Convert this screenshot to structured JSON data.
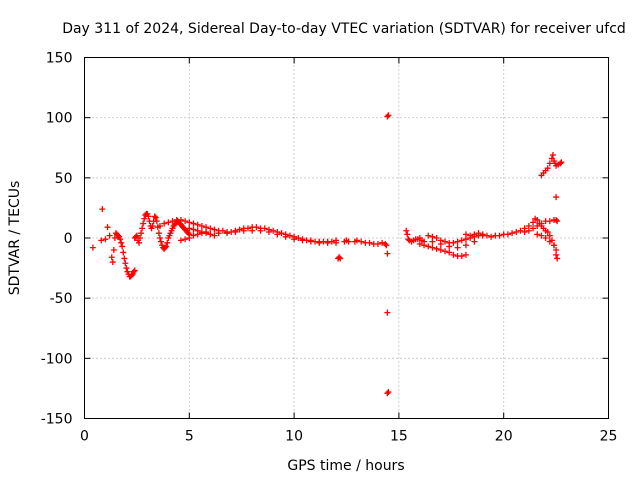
{
  "chart_data": {
    "type": "scatter",
    "title": "Day 311 of 2024, Sidereal Day-to-day VTEC variation (SDTVAR) for receiver ufcd",
    "xlabel": "GPS time / hours",
    "ylabel": "SDTVAR / TECUs",
    "xlim": [
      0,
      25
    ],
    "ylim": [
      -150,
      150
    ],
    "xticks": [
      0,
      5,
      10,
      15,
      20,
      25
    ],
    "yticks": [
      -150,
      -100,
      -50,
      0,
      50,
      100,
      150
    ],
    "grid": true,
    "marker": "+",
    "color": "#ff0000",
    "series": [
      {
        "name": "SDTVAR",
        "points": [
          [
            0.4,
            -8
          ],
          [
            0.85,
            24
          ],
          [
            0.8,
            -2
          ],
          [
            1.0,
            -1
          ],
          [
            1.1,
            9
          ],
          [
            1.2,
            2
          ],
          [
            1.3,
            -16
          ],
          [
            1.35,
            -20
          ],
          [
            1.4,
            -10
          ],
          [
            1.45,
            0
          ],
          [
            1.5,
            4
          ],
          [
            1.55,
            3
          ],
          [
            1.6,
            2
          ],
          [
            1.65,
            1
          ],
          [
            1.7,
            -1
          ],
          [
            1.75,
            -4
          ],
          [
            1.8,
            -7
          ],
          [
            1.85,
            -12
          ],
          [
            1.9,
            -17
          ],
          [
            1.95,
            -21
          ],
          [
            2.0,
            -25
          ],
          [
            2.05,
            -28
          ],
          [
            2.1,
            -30
          ],
          [
            2.15,
            -32
          ],
          [
            2.2,
            -32
          ],
          [
            2.25,
            -31
          ],
          [
            2.3,
            -30
          ],
          [
            2.35,
            -28
          ],
          [
            2.4,
            -27
          ],
          [
            2.4,
            0
          ],
          [
            2.45,
            1
          ],
          [
            2.5,
            2
          ],
          [
            2.55,
            -2
          ],
          [
            2.6,
            -4
          ],
          [
            2.65,
            0
          ],
          [
            2.7,
            4
          ],
          [
            2.75,
            8
          ],
          [
            2.8,
            12
          ],
          [
            2.85,
            16
          ],
          [
            2.9,
            19
          ],
          [
            2.95,
            20
          ],
          [
            3.0,
            20
          ],
          [
            3.05,
            18
          ],
          [
            3.1,
            14
          ],
          [
            3.15,
            10
          ],
          [
            3.2,
            8
          ],
          [
            3.25,
            10
          ],
          [
            3.3,
            14
          ],
          [
            3.35,
            18
          ],
          [
            3.4,
            17
          ],
          [
            3.45,
            14
          ],
          [
            3.5,
            9
          ],
          [
            3.55,
            4
          ],
          [
            3.6,
            0
          ],
          [
            3.65,
            -3
          ],
          [
            3.7,
            -6
          ],
          [
            3.75,
            -8
          ],
          [
            3.8,
            -9
          ],
          [
            3.85,
            -8
          ],
          [
            3.9,
            -7
          ],
          [
            3.95,
            -4
          ],
          [
            4.0,
            0
          ],
          [
            4.05,
            2
          ],
          [
            4.1,
            4
          ],
          [
            4.15,
            6
          ],
          [
            4.2,
            8
          ],
          [
            4.25,
            10
          ],
          [
            4.3,
            11
          ],
          [
            4.35,
            12
          ],
          [
            4.4,
            13
          ],
          [
            4.45,
            14
          ],
          [
            4.5,
            13
          ],
          [
            4.55,
            12
          ],
          [
            4.6,
            11
          ],
          [
            4.65,
            10
          ],
          [
            4.7,
            9
          ],
          [
            4.75,
            8
          ],
          [
            4.8,
            7
          ],
          [
            4.85,
            6
          ],
          [
            4.9,
            5
          ],
          [
            4.95,
            4
          ],
          [
            5.0,
            3
          ],
          [
            3.6,
            10
          ],
          [
            3.8,
            12
          ],
          [
            4.0,
            13
          ],
          [
            4.2,
            14
          ],
          [
            4.4,
            15
          ],
          [
            4.6,
            15
          ],
          [
            4.8,
            14
          ],
          [
            5.0,
            13
          ],
          [
            5.2,
            12
          ],
          [
            5.4,
            11
          ],
          [
            5.6,
            10
          ],
          [
            5.8,
            9
          ],
          [
            4.6,
            -2
          ],
          [
            4.8,
            -1
          ],
          [
            5.0,
            0
          ],
          [
            5.2,
            2
          ],
          [
            5.4,
            3
          ],
          [
            5.6,
            4
          ],
          [
            5.8,
            5
          ],
          [
            5.0,
            8
          ],
          [
            5.2,
            7
          ],
          [
            5.4,
            6
          ],
          [
            5.6,
            5
          ],
          [
            5.8,
            4
          ],
          [
            6.0,
            3
          ],
          [
            6.2,
            2
          ],
          [
            6.0,
            8
          ],
          [
            6.2,
            7
          ],
          [
            6.4,
            6
          ],
          [
            6.6,
            6
          ],
          [
            6.8,
            5
          ],
          [
            7.0,
            5
          ],
          [
            7.2,
            6
          ],
          [
            7.4,
            7
          ],
          [
            7.6,
            8
          ],
          [
            7.8,
            8
          ],
          [
            8.0,
            9
          ],
          [
            8.2,
            9
          ],
          [
            8.4,
            8
          ],
          [
            8.6,
            8
          ],
          [
            8.8,
            7
          ],
          [
            9.0,
            6
          ],
          [
            9.2,
            5
          ],
          [
            9.4,
            4
          ],
          [
            9.6,
            3
          ],
          [
            9.8,
            2
          ],
          [
            10.0,
            1
          ],
          [
            10.2,
            0
          ],
          [
            10.4,
            -1
          ],
          [
            10.6,
            -2
          ],
          [
            10.8,
            -2
          ],
          [
            11.0,
            -3
          ],
          [
            11.2,
            -3
          ],
          [
            11.4,
            -3
          ],
          [
            11.6,
            -3
          ],
          [
            11.8,
            -3
          ],
          [
            12.0,
            -2
          ],
          [
            6.0,
            3
          ],
          [
            6.4,
            4
          ],
          [
            6.8,
            4
          ],
          [
            7.2,
            5
          ],
          [
            7.6,
            6
          ],
          [
            8.0,
            6
          ],
          [
            8.4,
            6
          ],
          [
            8.8,
            5
          ],
          [
            9.2,
            3
          ],
          [
            9.6,
            1
          ],
          [
            10.0,
            -1
          ],
          [
            10.4,
            -2
          ],
          [
            10.8,
            -3
          ],
          [
            11.2,
            -4
          ],
          [
            11.6,
            -4
          ],
          [
            12.0,
            -4
          ],
          [
            12.1,
            -17
          ],
          [
            12.15,
            -16
          ],
          [
            12.2,
            -17
          ],
          [
            12.4,
            -3
          ],
          [
            12.5,
            -2
          ],
          [
            12.6,
            -3
          ],
          [
            12.9,
            -3
          ],
          [
            13.0,
            -2
          ],
          [
            13.2,
            -3
          ],
          [
            13.4,
            -4
          ],
          [
            13.6,
            -4
          ],
          [
            13.8,
            -5
          ],
          [
            14.0,
            -5
          ],
          [
            14.2,
            -4
          ],
          [
            14.35,
            -5
          ],
          [
            14.4,
            -6
          ],
          [
            14.45,
            101
          ],
          [
            14.5,
            102
          ],
          [
            14.45,
            -13
          ],
          [
            14.45,
            -62
          ],
          [
            14.45,
            -129
          ],
          [
            14.5,
            -128
          ],
          [
            15.35,
            6
          ],
          [
            15.4,
            3
          ],
          [
            15.45,
            -1
          ],
          [
            15.5,
            -2
          ],
          [
            15.6,
            -3
          ],
          [
            15.7,
            -2
          ],
          [
            15.8,
            -1
          ],
          [
            15.9,
            -1
          ],
          [
            16.0,
            0
          ],
          [
            16.1,
            -2
          ],
          [
            16.2,
            -3
          ],
          [
            16.0,
            -5
          ],
          [
            16.2,
            -6
          ],
          [
            16.4,
            -7
          ],
          [
            16.6,
            -8
          ],
          [
            16.8,
            -9
          ],
          [
            17.0,
            -10
          ],
          [
            17.2,
            -11
          ],
          [
            17.4,
            -12
          ],
          [
            17.6,
            -14
          ],
          [
            17.8,
            -15
          ],
          [
            18.0,
            -15
          ],
          [
            18.2,
            -14
          ],
          [
            16.4,
            2
          ],
          [
            16.6,
            1
          ],
          [
            16.8,
            0
          ],
          [
            17.0,
            -2
          ],
          [
            17.2,
            -3
          ],
          [
            17.4,
            -4
          ],
          [
            17.6,
            -4
          ],
          [
            17.8,
            -3
          ],
          [
            18.0,
            -2
          ],
          [
            18.2,
            -1
          ],
          [
            18.4,
            0
          ],
          [
            18.6,
            1
          ],
          [
            18.8,
            2
          ],
          [
            19.0,
            2
          ],
          [
            16.6,
            -3
          ],
          [
            17.0,
            -5
          ],
          [
            17.4,
            -7
          ],
          [
            17.8,
            -8
          ],
          [
            18.2,
            -6
          ],
          [
            18.6,
            -3
          ],
          [
            18.2,
            3
          ],
          [
            18.4,
            2
          ],
          [
            18.6,
            3
          ],
          [
            18.8,
            4
          ],
          [
            19.0,
            3
          ],
          [
            19.2,
            2
          ],
          [
            19.4,
            1
          ],
          [
            19.6,
            2
          ],
          [
            19.8,
            2
          ],
          [
            20.0,
            3
          ],
          [
            20.2,
            3
          ],
          [
            20.4,
            4
          ],
          [
            20.6,
            5
          ],
          [
            20.8,
            6
          ],
          [
            21.0,
            8
          ],
          [
            21.2,
            10
          ],
          [
            21.4,
            13
          ],
          [
            21.5,
            16
          ],
          [
            21.6,
            15
          ],
          [
            21.7,
            12
          ],
          [
            21.8,
            10
          ],
          [
            21.9,
            8
          ],
          [
            22.0,
            6
          ],
          [
            22.1,
            5
          ],
          [
            22.2,
            2
          ],
          [
            22.3,
            -2
          ],
          [
            22.4,
            -6
          ],
          [
            22.5,
            -10
          ],
          [
            21.0,
            5
          ],
          [
            21.2,
            6
          ],
          [
            21.4,
            8
          ],
          [
            21.6,
            10
          ],
          [
            21.8,
            12
          ],
          [
            22.0,
            14
          ],
          [
            22.2,
            14
          ],
          [
            22.4,
            15
          ],
          [
            22.5,
            15
          ],
          [
            21.6,
            3
          ],
          [
            21.8,
            2
          ],
          [
            22.0,
            0
          ],
          [
            22.2,
            -3
          ],
          [
            22.4,
            -6
          ],
          [
            22.5,
            -14
          ],
          [
            22.55,
            -17
          ],
          [
            21.8,
            52
          ],
          [
            21.9,
            54
          ],
          [
            22.0,
            56
          ],
          [
            22.1,
            58
          ],
          [
            22.2,
            62
          ],
          [
            22.3,
            66
          ],
          [
            22.35,
            69
          ],
          [
            22.4,
            64
          ],
          [
            22.45,
            62
          ],
          [
            22.5,
            60
          ],
          [
            22.6,
            61
          ],
          [
            22.7,
            62
          ],
          [
            22.75,
            63
          ],
          [
            22.5,
            34
          ],
          [
            22.55,
            14
          ]
        ]
      }
    ]
  }
}
